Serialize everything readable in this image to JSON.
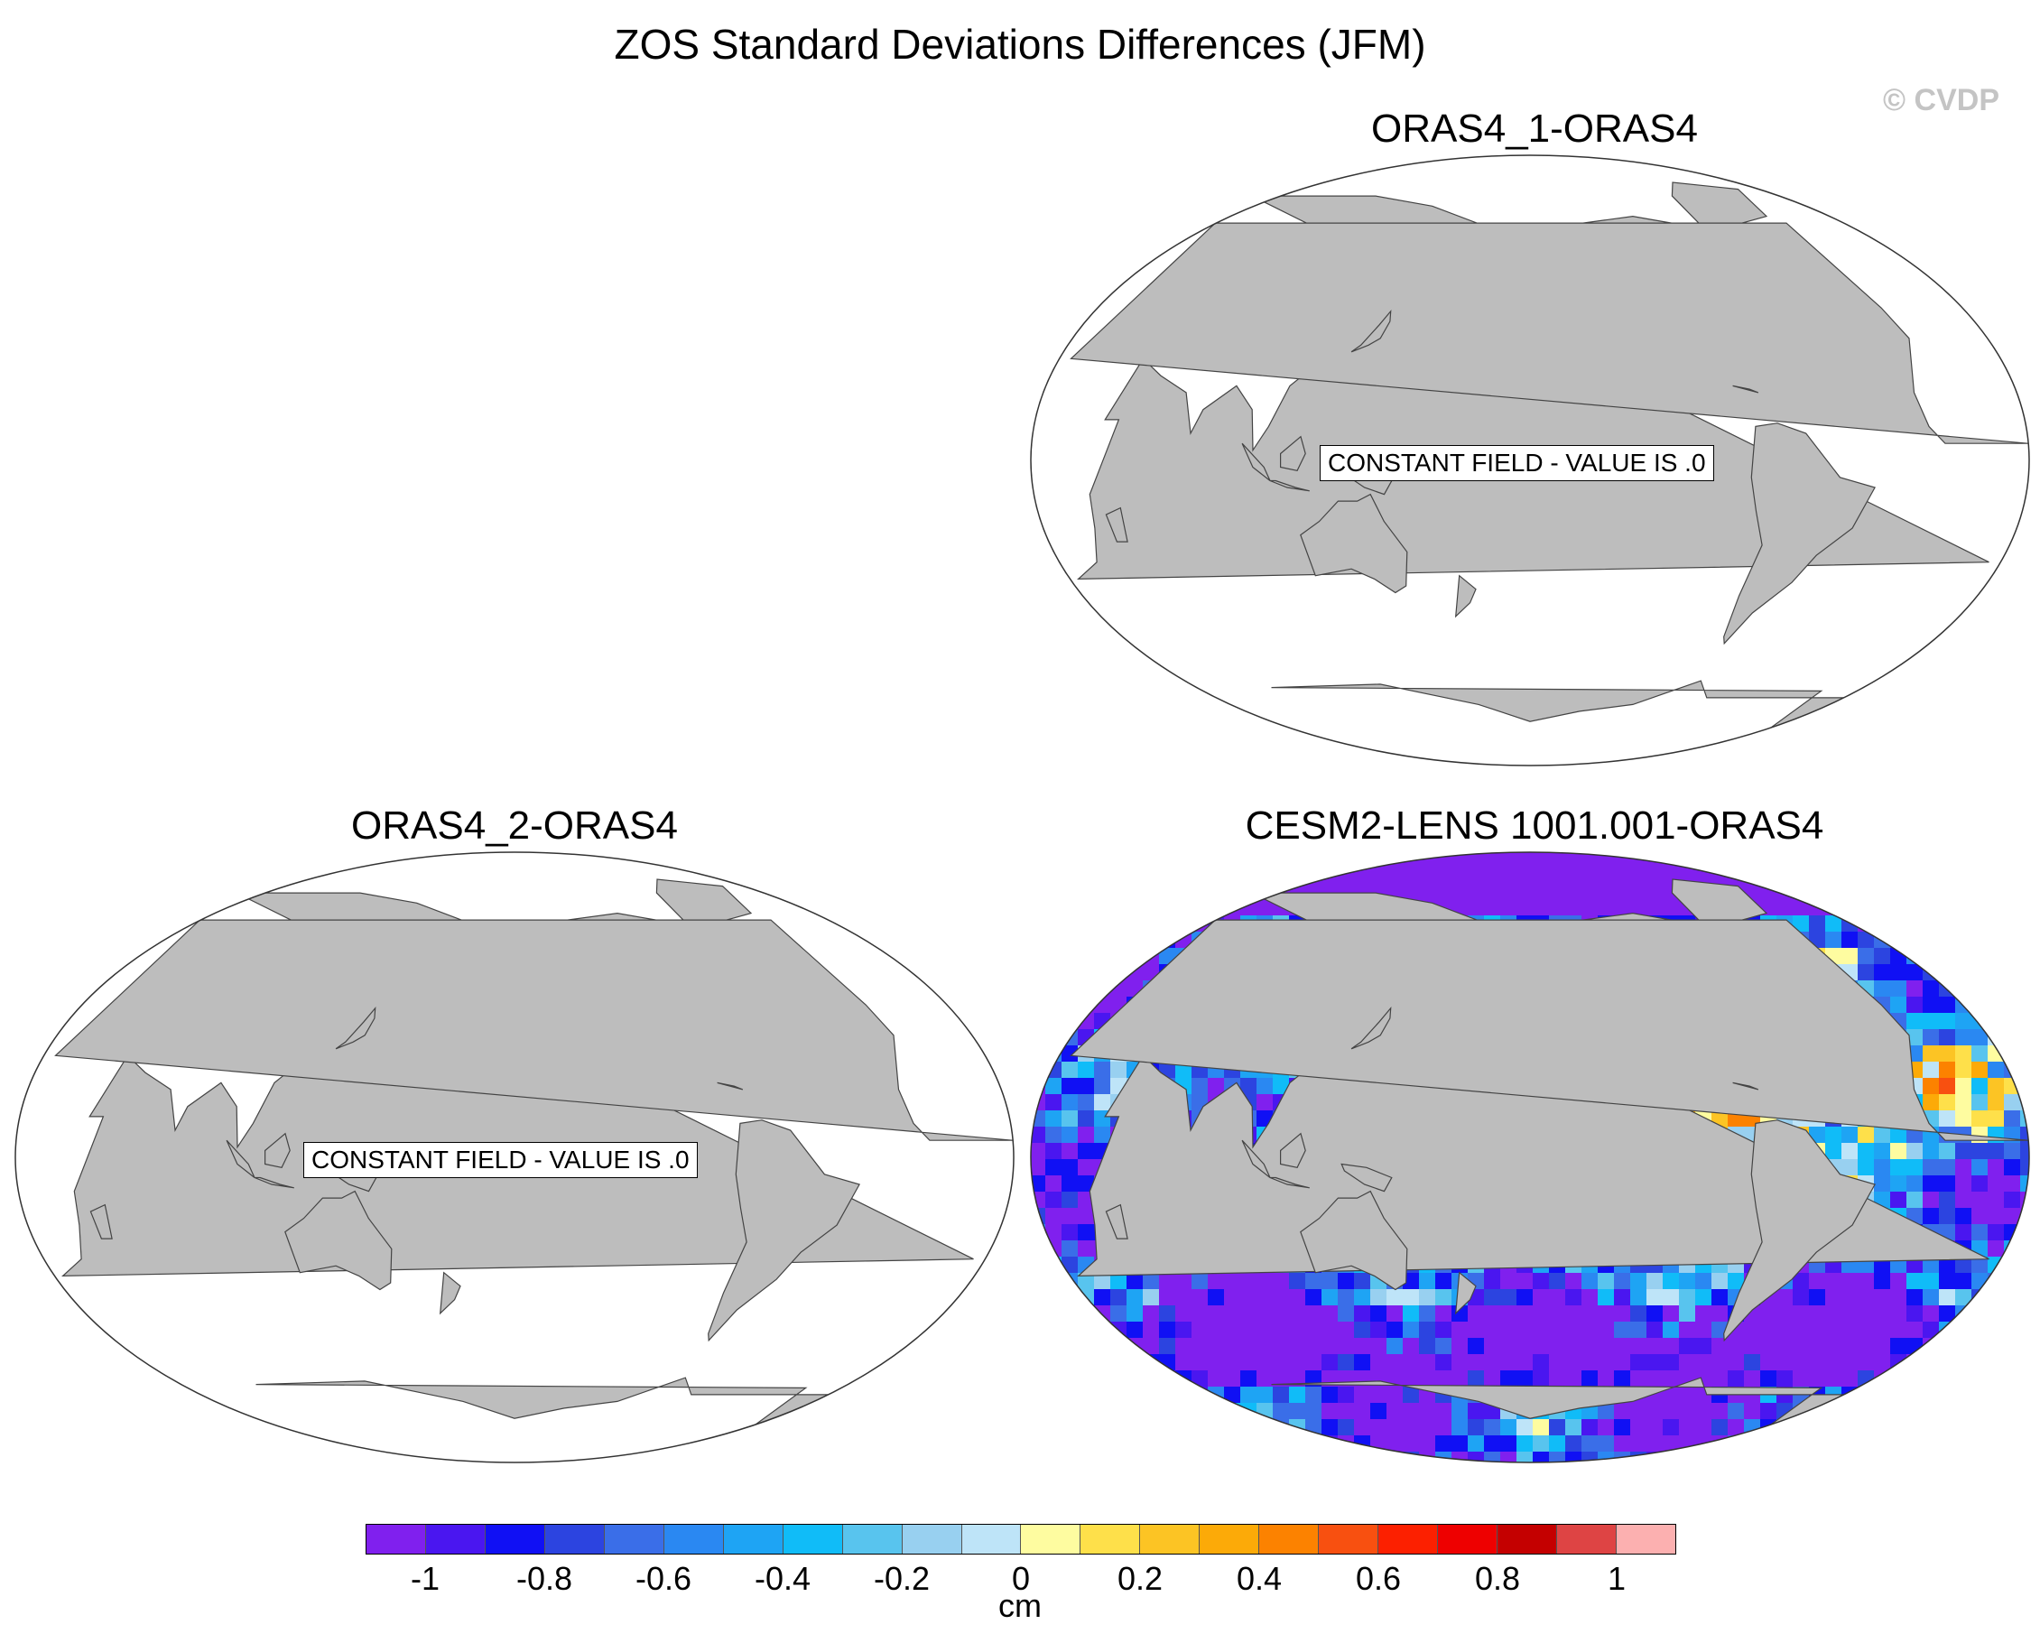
{
  "title": "ZOS Standard Deviations Differences (JFM)",
  "watermark": "© CVDP",
  "panels": [
    {
      "title": "ORAS4_1-ORAS4",
      "message": "CONSTANT FIELD - VALUE IS .0",
      "field": "constant"
    },
    {
      "title": "ORAS4_2-ORAS4",
      "message": "CONSTANT FIELD - VALUE IS .0",
      "field": "constant"
    },
    {
      "title": "CESM2-LENS 1001.001-ORAS4",
      "message": "",
      "field": "anomaly"
    }
  ],
  "colorbar": {
    "units": "cm",
    "tick_labels": [
      "-1",
      "-0.8",
      "-0.6",
      "-0.4",
      "-0.2",
      "0",
      "0.2",
      "0.4",
      "0.6",
      "0.8",
      "1"
    ],
    "colors": [
      "#8020ee",
      "#4a16f0",
      "#1010f4",
      "#2c44e0",
      "#3a6ee8",
      "#2a88f2",
      "#1ea4f4",
      "#10bcf8",
      "#58c4ee",
      "#98d0f0",
      "#bee4f8",
      "#fefca0",
      "#fee04a",
      "#fcc424",
      "#fcaa08",
      "#fc8200",
      "#f85010",
      "#fc2000",
      "#ee0000",
      "#c40000",
      "#de4444",
      "#fcb0b0"
    ],
    "range": [
      -1.1,
      1.1
    ]
  },
  "style": {
    "land": "#bdbdbd",
    "ocean": "#ffffff"
  }
}
